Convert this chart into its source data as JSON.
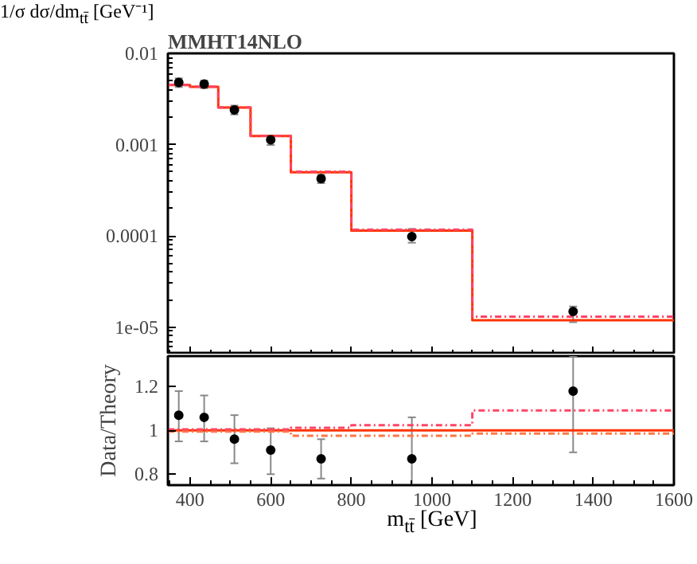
{
  "chart_data": [
    {
      "type": "histogram",
      "title": "MMHT14NLO",
      "ylabel": "1/σ dσ/dm$_{tt̄}$ [GeV⁻¹]",
      "log": "y",
      "tick_labels": "y",
      "grid": false,
      "bins": [
        345,
        400,
        470,
        550,
        650,
        800,
        1100,
        1600
      ],
      "xlim": [
        345,
        1600
      ],
      "xticks": [
        {
          "value": 400,
          "label": null
        },
        {
          "value": 600,
          "label": null
        },
        {
          "value": 800,
          "label": null
        },
        {
          "value": 1000,
          "label": null
        },
        {
          "value": 1200,
          "label": null
        },
        {
          "value": 1400,
          "label": null
        },
        {
          "value": 1600,
          "label": null
        }
      ],
      "ylim": [
        5e-06,
        0.01
      ],
      "yticks": [
        0.01,
        0.001,
        0.0001,
        {
          "value": 1e-05,
          "label": "1e-05"
        }
      ],
      "series": [
        {
          "color": "#ff3300",
          "values": [
            0.00449,
            0.0043,
            0.00255,
            0.00124,
            0.000498,
            0.000114,
            1.19e-05
          ]
        },
        {
          "color": "#ff4466",
          "line_style": "dashed",
          "values": [
            0.00451,
            0.00432,
            0.00256,
            0.00125,
            0.000504,
            0.000117,
            1.3e-05
          ]
        },
        {
          "type": "scatter",
          "color": "#000000",
          "marker": "circle",
          "x": [
            372,
            435,
            510,
            600,
            725,
            950,
            1350
          ],
          "values": [
            0.00481,
            0.0046,
            0.0024,
            0.00113,
            0.000424,
            9.8e-05,
            1.48e-05
          ],
          "errors": [
            [
              0.00427,
              0.00533
            ],
            [
              0.00415,
              0.00503
            ],
            [
              0.00214,
              0.00268
            ],
            [
              0.00099,
              0.00126
            ],
            [
              0.000378,
              0.000467
            ],
            [
              8.4e-05,
              0.000119
            ],
            [
              1.13e-05,
              1.68e-05
            ]
          ]
        }
      ]
    },
    {
      "type": "histogram",
      "xlabel": "m$_{tt̄}$ [GeV]",
      "ylabel": "Data/Theory",
      "grid": false,
      "bins": [
        345,
        400,
        470,
        550,
        650,
        800,
        1100,
        1600
      ],
      "xlim": [
        345,
        1600
      ],
      "xticks": [
        400,
        600,
        800,
        1000,
        1200,
        1400,
        1600
      ],
      "ylim": [
        0.75,
        1.34
      ],
      "yticks": [
        0.8,
        1,
        1.2
      ],
      "series": [
        {
          "color": "#ff3300",
          "values": [
            1,
            1,
            1,
            1,
            1,
            1,
            1
          ]
        },
        {
          "color": "#ff7744",
          "line_style": "dashed",
          "values": [
            0.995,
            0.995,
            0.995,
            0.995,
            0.976,
            0.976,
            0.986
          ]
        },
        {
          "color": "#ff4466",
          "line_style": "dashed",
          "values": [
            1.005,
            1.005,
            1.005,
            1.005,
            1.012,
            1.024,
            1.091
          ]
        },
        {
          "type": "scatter",
          "color": "#000000",
          "marker": "circle",
          "x": [
            372,
            435,
            510,
            600,
            725,
            950,
            1350
          ],
          "values": [
            1.07,
            1.06,
            0.96,
            0.91,
            0.87,
            0.87,
            1.18
          ],
          "errors": [
            [
              0.95,
              1.18
            ],
            [
              0.95,
              1.16
            ],
            [
              0.85,
              1.07
            ],
            [
              0.8,
              1.01
            ],
            [
              0.78,
              0.96
            ],
            [
              0.75,
              1.06
            ],
            [
              0.9,
              1.34
            ]
          ]
        }
      ]
    }
  ]
}
